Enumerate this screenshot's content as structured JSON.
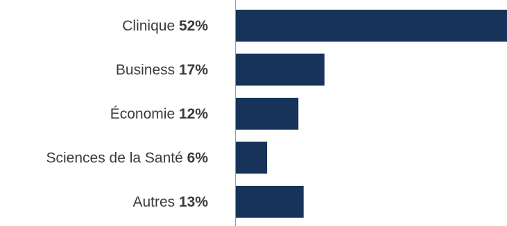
{
  "chart_data": {
    "type": "bar",
    "orientation": "horizontal",
    "categories": [
      "Clinique",
      "Business",
      "Économie",
      "Sciences de la Santé",
      "Autres"
    ],
    "value_labels": [
      "52%",
      "17%",
      "12%",
      "6%",
      "13%"
    ],
    "values": [
      52,
      17,
      12,
      6,
      13
    ],
    "xlim": [
      0,
      52
    ],
    "grid": false,
    "legend": "none",
    "bar_color": "#17335a",
    "title": "",
    "xlabel": "",
    "ylabel": ""
  }
}
